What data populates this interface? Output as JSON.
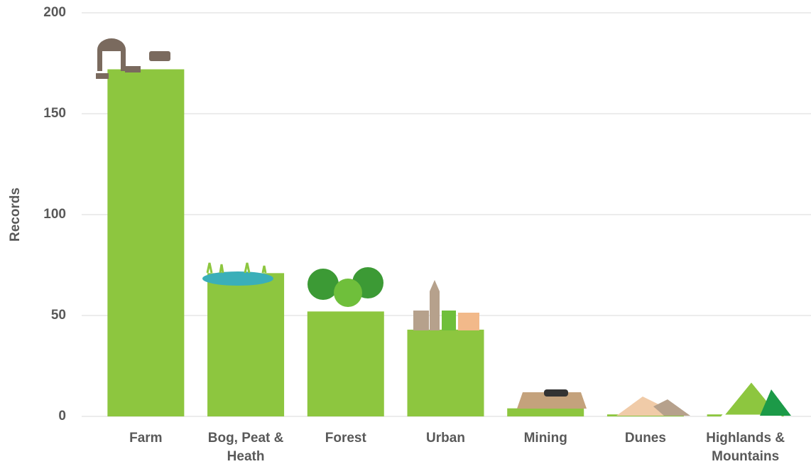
{
  "chart_data": {
    "type": "bar",
    "ylabel": "Records",
    "categories": [
      "Farm",
      "Bog, Peat & Heath",
      "Forest",
      "Urban",
      "Mining",
      "Dunes",
      "Highlands & Mountains"
    ],
    "values": [
      172,
      71,
      52,
      43,
      4,
      1,
      1
    ],
    "color": "#8dc63f",
    "ylim": [
      0,
      200
    ],
    "yticks": [
      0,
      50,
      100,
      150,
      200
    ],
    "grid": true
  }
}
